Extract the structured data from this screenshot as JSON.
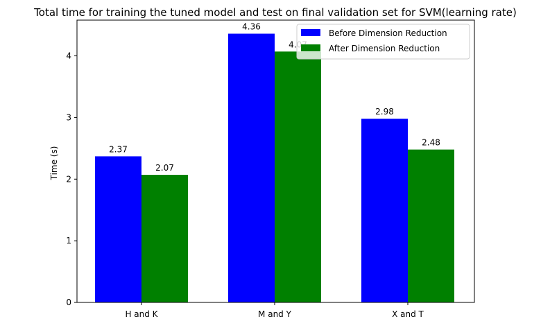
{
  "chart_data": {
    "type": "bar",
    "title": "Total time for training the tuned model and test on final validation set for SVM(learning rate)",
    "xlabel": "",
    "ylabel": "Time (s)",
    "categories": [
      "H and K",
      "M and Y",
      "X and T"
    ],
    "series": [
      {
        "name": "Before Dimension Reduction",
        "values": [
          2.37,
          4.36,
          2.98
        ],
        "labels": [
          "2.37",
          "4.36",
          "2.98"
        ],
        "color": "#0000ff"
      },
      {
        "name": "After Dimension Reduction",
        "values": [
          2.07,
          4.07,
          2.48
        ],
        "labels": [
          "2.07",
          "4.07",
          "2.48"
        ],
        "color": "#008000"
      }
    ],
    "ylim": [
      0,
      4.58
    ],
    "yticks": [
      0,
      1,
      2,
      3,
      4
    ],
    "ytick_labels": [
      "0",
      "1",
      "2",
      "3",
      "4"
    ],
    "grid": false,
    "legend": "top-right"
  }
}
